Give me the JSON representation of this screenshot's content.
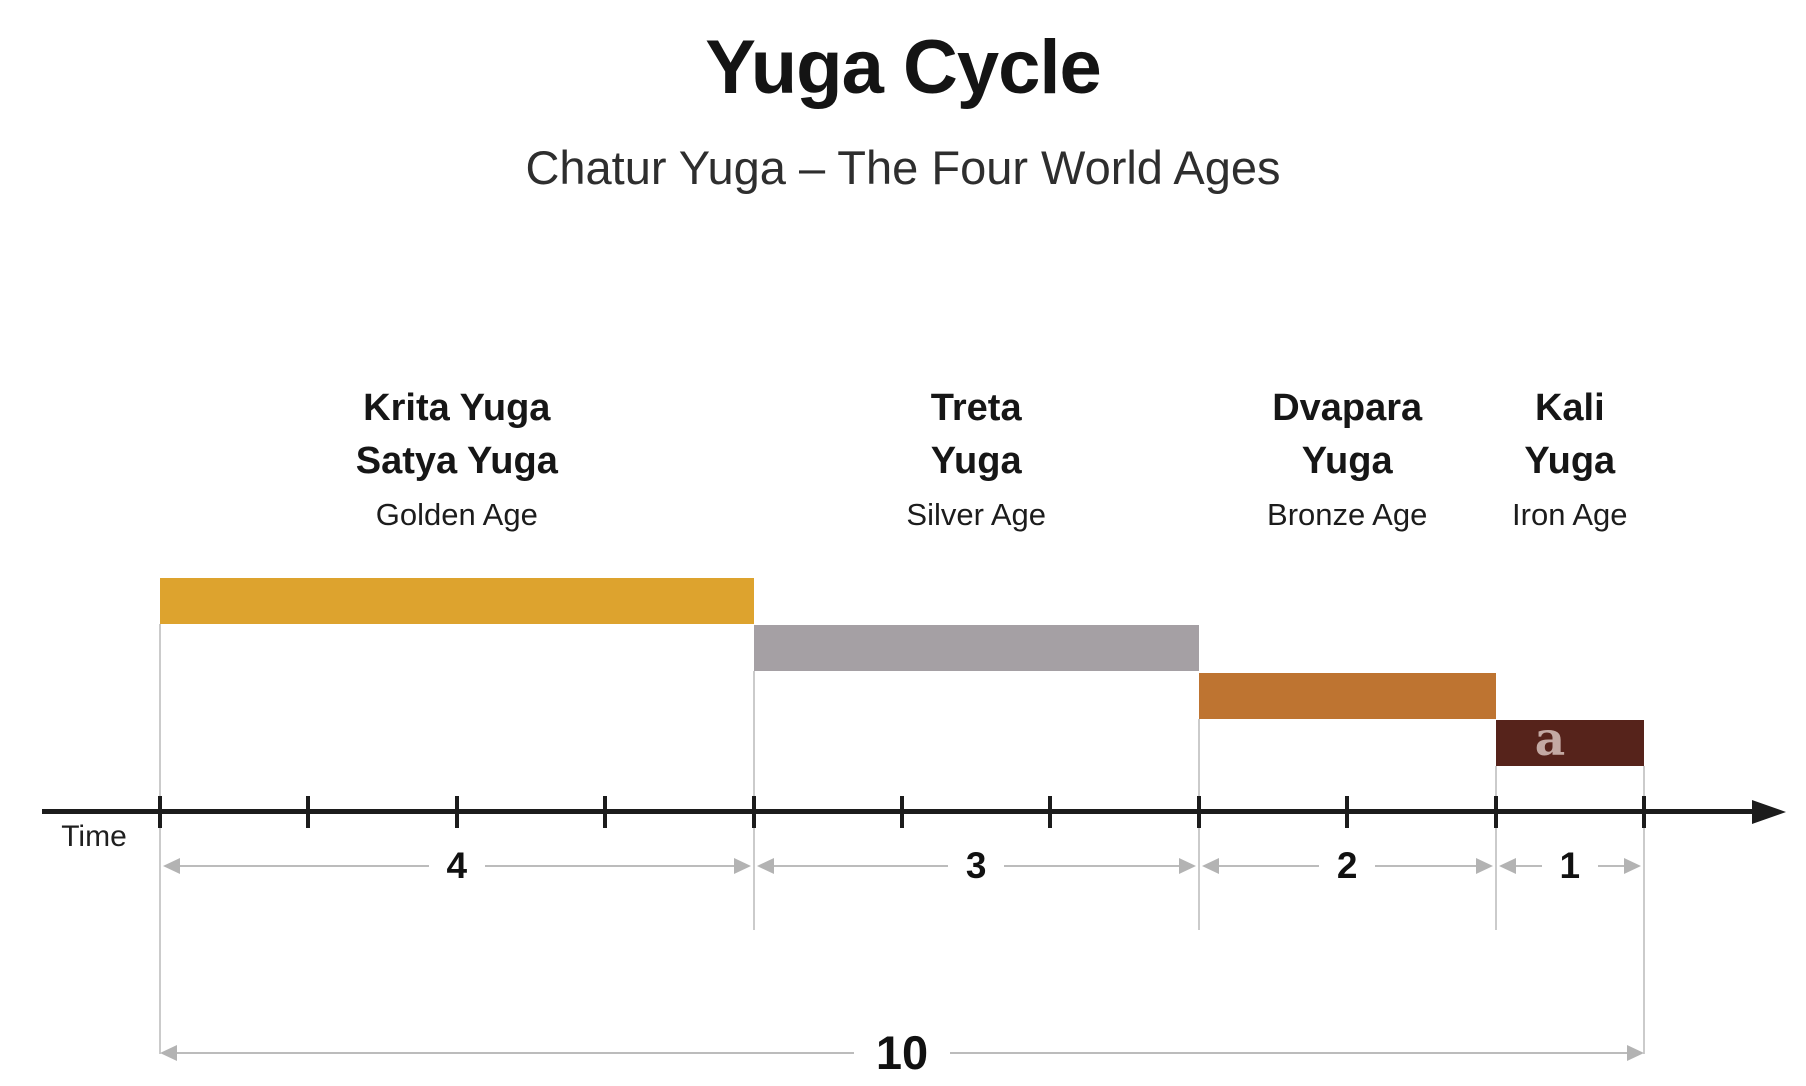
{
  "title": "Yuga Cycle",
  "subtitle": "Chatur Yuga – The Four World Ages",
  "time_axis_label": "Time",
  "watermark_glyph": "a",
  "total": {
    "value": 10,
    "label": "10"
  },
  "ages": [
    {
      "name_lines": [
        "Krita Yuga",
        "Satya Yuga"
      ],
      "age_label": "Golden Age",
      "duration": 4,
      "duration_label": "4",
      "color": "#dda32e"
    },
    {
      "name_lines": [
        "Treta",
        "Yuga"
      ],
      "age_label": "Silver Age",
      "duration": 3,
      "duration_label": "3",
      "color": "#a5a0a4"
    },
    {
      "name_lines": [
        "Dvapara",
        "Yuga"
      ],
      "age_label": "Bronze Age",
      "duration": 2,
      "duration_label": "2",
      "color": "#be7431"
    },
    {
      "name_lines": [
        "Kali",
        "Yuga"
      ],
      "age_label": "Iron Age",
      "duration": 1,
      "duration_label": "1",
      "color": "#56231b"
    }
  ],
  "colors": {
    "golden_age": "#dda32e",
    "silver_age": "#a5a0a4",
    "bronze_age": "#be7431",
    "iron_age": "#56231b",
    "axis": "#1c1c1c",
    "dimension_lines": "#bcbcbc",
    "extension_lines": "#cbcbcb",
    "watermark": "#c3a9a3",
    "text": "#161616"
  },
  "chart_data": {
    "type": "bar",
    "orientation": "horizontal-stepped-timeline",
    "title": "Yuga Cycle",
    "subtitle": "Chatur Yuga – The Four World Ages",
    "categories": [
      "Krita Yuga / Satya Yuga (Golden Age)",
      "Treta Yuga (Silver Age)",
      "Dvapara Yuga (Bronze Age)",
      "Kali Yuga (Iron Age)"
    ],
    "values": [
      4,
      3,
      2,
      1
    ],
    "total": 10,
    "xlabel": "Time",
    "x_axis": {
      "range": [
        0,
        10
      ],
      "tick_count": 11,
      "tick_interval": 1,
      "arrow_at_end": true
    },
    "bar_colors": [
      "#dda32e",
      "#a5a0a4",
      "#be7431",
      "#56231b"
    ],
    "annotations": [
      "4",
      "3",
      "2",
      "1",
      "10"
    ],
    "grid": false,
    "legend": false
  }
}
